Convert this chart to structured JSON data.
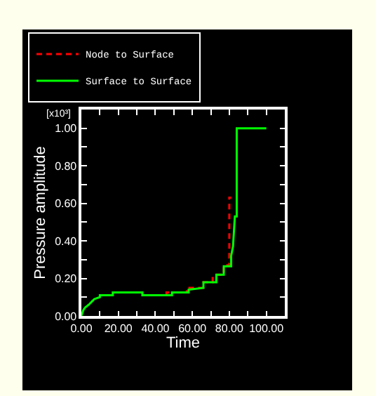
{
  "chart_data": {
    "type": "line",
    "xlabel": "Time",
    "ylabel": "Pressure amplitude",
    "annotations": [
      "[x10³]"
    ],
    "xlim": [
      0,
      110
    ],
    "ylim": [
      0,
      1.1
    ],
    "xticks": [
      {
        "value": 0,
        "label": "0.00"
      },
      {
        "value": 10,
        "label": null
      },
      {
        "value": 20,
        "label": "20.00"
      },
      {
        "value": 30,
        "label": null
      },
      {
        "value": 40,
        "label": "40.00"
      },
      {
        "value": 50,
        "label": null
      },
      {
        "value": 60,
        "label": "60.00"
      },
      {
        "value": 70,
        "label": null
      },
      {
        "value": 80,
        "label": "80.00"
      },
      {
        "value": 90,
        "label": null
      },
      {
        "value": 100,
        "label": "100.00"
      }
    ],
    "yticks": [
      {
        "value": 0,
        "label": "0.00"
      },
      {
        "value": 0.1,
        "label": null
      },
      {
        "value": 0.2,
        "label": "0.20"
      },
      {
        "value": 0.3,
        "label": null
      },
      {
        "value": 0.4,
        "label": "0.40"
      },
      {
        "value": 0.5,
        "label": null
      },
      {
        "value": 0.6,
        "label": "0.60"
      },
      {
        "value": 0.7,
        "label": null
      },
      {
        "value": 0.8,
        "label": "0.80"
      },
      {
        "value": 0.9,
        "label": null
      },
      {
        "value": 1.0,
        "label": "1.00"
      }
    ],
    "grid": false,
    "legend": "top left",
    "marker": "none",
    "series": [
      {
        "name": "Node to Surface",
        "color": "#ff0000",
        "line_style": "dashed",
        "x": [
          46,
          46,
          49,
          49,
          57,
          57,
          66,
          66,
          71,
          71,
          73,
          77,
          77,
          80,
          80,
          81
        ],
        "values": [
          0.11,
          0.125,
          0.125,
          0.125,
          0.125,
          0.15,
          0.15,
          0.18,
          0.18,
          0.21,
          0.22,
          0.22,
          0.27,
          0.27,
          0.63,
          0.63
        ]
      },
      {
        "name": "Surface to Surface",
        "color": "#00ff00",
        "line_style": "solid",
        "x": [
          0,
          1,
          2,
          4,
          6,
          7,
          10,
          10,
          17,
          17,
          33,
          33,
          49,
          49,
          58,
          58,
          66,
          66,
          73,
          73,
          77,
          77,
          81,
          81,
          82,
          83,
          84,
          84,
          100
        ],
        "values": [
          0,
          0.03,
          0.045,
          0.06,
          0.08,
          0.09,
          0.1,
          0.11,
          0.11,
          0.125,
          0.125,
          0.11,
          0.11,
          0.125,
          0.125,
          0.14,
          0.15,
          0.18,
          0.18,
          0.22,
          0.22,
          0.265,
          0.265,
          0.32,
          0.37,
          0.53,
          0.53,
          1.0,
          1.0
        ]
      }
    ]
  }
}
